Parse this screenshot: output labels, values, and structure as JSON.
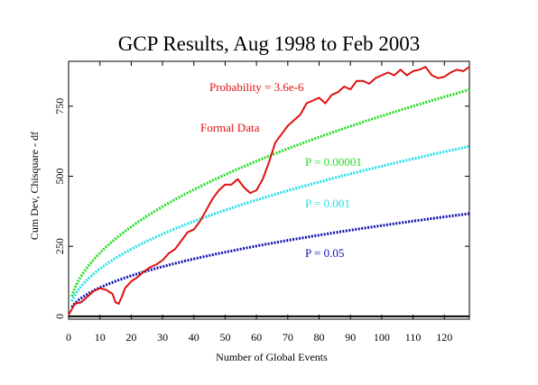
{
  "chart_data": {
    "type": "line",
    "title": "GCP Results, Aug 1998 to Feb 2003",
    "xlabel": "Number of Global Events",
    "ylabel": "Cum Dev, Chisquare - df",
    "xlim": [
      0,
      128
    ],
    "ylim": [
      -10,
      910
    ],
    "xticks": [
      0,
      10,
      20,
      30,
      40,
      50,
      60,
      70,
      80,
      90,
      100,
      110,
      120
    ],
    "yticks": [
      0,
      250,
      500,
      750
    ],
    "grid": false,
    "annotations": {
      "probability": "Probability = 3.6e-6",
      "formal_data": "Formal Data"
    },
    "colors": {
      "data": "#e01010",
      "p00001": "#22dd22",
      "p001": "#22e0e8",
      "p05": "#1010b0",
      "zero": "#000000"
    },
    "series": [
      {
        "label": "Formal Data",
        "x": [
          0,
          2,
          4,
          6,
          8,
          10,
          12,
          14,
          15,
          16,
          17,
          18,
          20,
          22,
          24,
          26,
          28,
          30,
          32,
          34,
          36,
          38,
          40,
          42,
          44,
          46,
          48,
          50,
          52,
          54,
          56,
          58,
          60,
          62,
          64,
          66,
          68,
          70,
          72,
          74,
          76,
          78,
          80,
          82,
          84,
          86,
          88,
          90,
          92,
          94,
          96,
          98,
          100,
          102,
          104,
          106,
          108,
          110,
          112,
          114,
          116,
          118,
          120,
          122,
          124,
          126,
          128
        ],
        "y": [
          5,
          45,
          50,
          70,
          90,
          100,
          95,
          80,
          50,
          45,
          70,
          100,
          125,
          140,
          160,
          175,
          185,
          200,
          225,
          240,
          270,
          300,
          310,
          340,
          380,
          420,
          450,
          470,
          470,
          490,
          460,
          440,
          450,
          490,
          550,
          620,
          650,
          680,
          700,
          720,
          760,
          770,
          780,
          760,
          790,
          800,
          820,
          810,
          840,
          840,
          830,
          850,
          860,
          870,
          860,
          880,
          860,
          875,
          880,
          890,
          860,
          850,
          855,
          870,
          880,
          875,
          890
        ]
      }
    ],
    "reference_curves": [
      {
        "label": "P = 0.00001",
        "coef": 71.5,
        "power": 0.5,
        "offset": 0
      },
      {
        "label": "P = 0.001",
        "coef": 53.6,
        "power": 0.5,
        "offset": 0
      },
      {
        "label": "P = 0.05",
        "coef": 32.4,
        "power": 0.5,
        "offset": 0
      }
    ]
  }
}
